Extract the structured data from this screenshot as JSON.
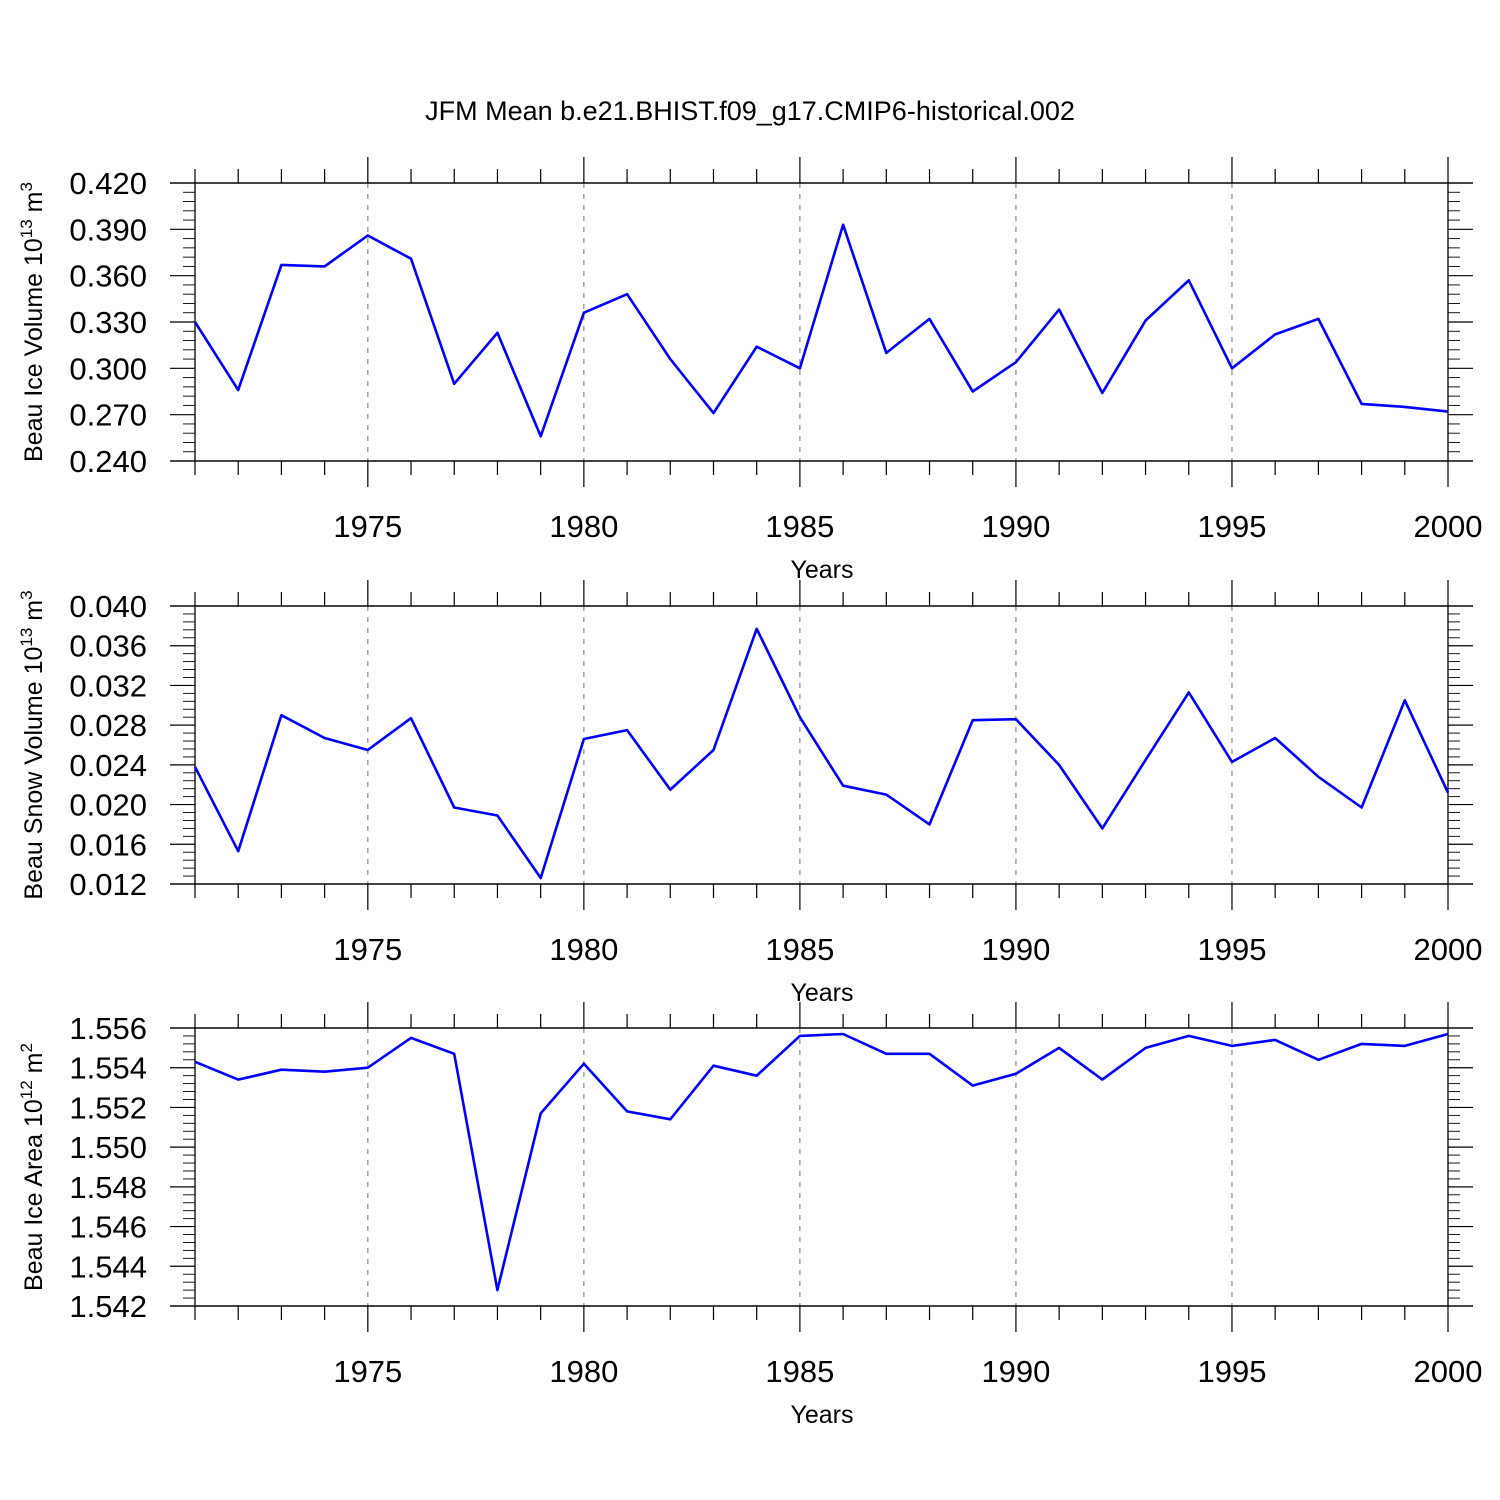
{
  "title": "JFM Mean b.e21.BHIST.f09_g17.CMIP6-historical.002",
  "colors": {
    "line": "#0000ff",
    "grid": "#888888",
    "axis": "#000000"
  },
  "chart_data": [
    {
      "type": "line",
      "ylabel": "Beau Ice Volume 10",
      "ylabel_exp": "13",
      "ylabel_unit": " m",
      "ylabel_unit_exp": "3",
      "xlabel": "Years",
      "xlim": [
        1971,
        2000
      ],
      "ylim": [
        0.24,
        0.42
      ],
      "yticks": [
        "0.240",
        "0.270",
        "0.300",
        "0.330",
        "0.360",
        "0.390",
        "0.420"
      ],
      "xticks": [
        "1975",
        "1980",
        "1985",
        "1990",
        "1995",
        "2000"
      ],
      "grid": "vertical dashed at major x ticks",
      "x": [
        1971,
        1972,
        1973,
        1974,
        1975,
        1976,
        1977,
        1978,
        1979,
        1980,
        1981,
        1982,
        1983,
        1984,
        1985,
        1986,
        1987,
        1988,
        1989,
        1990,
        1991,
        1992,
        1993,
        1994,
        1995,
        1996,
        1997,
        1998,
        1999,
        2000
      ],
      "values": [
        0.33,
        0.286,
        0.367,
        0.366,
        0.386,
        0.371,
        0.29,
        0.323,
        0.256,
        0.336,
        0.348,
        0.306,
        0.271,
        0.314,
        0.3,
        0.393,
        0.31,
        0.332,
        0.285,
        0.304,
        0.338,
        0.284,
        0.331,
        0.357,
        0.3,
        0.322,
        0.332,
        0.277,
        0.275,
        0.272
      ]
    },
    {
      "type": "line",
      "ylabel": "Beau Snow Volume 10",
      "ylabel_exp": "13",
      "ylabel_unit": " m",
      "ylabel_unit_exp": "3",
      "xlabel": "Years",
      "xlim": [
        1971,
        2000
      ],
      "ylim": [
        0.012,
        0.04
      ],
      "yticks": [
        "0.012",
        "0.016",
        "0.020",
        "0.024",
        "0.028",
        "0.032",
        "0.036",
        "0.040"
      ],
      "xticks": [
        "1975",
        "1980",
        "1985",
        "1990",
        "1995",
        "2000"
      ],
      "grid": "vertical dashed at major x ticks",
      "x": [
        1971,
        1972,
        1973,
        1974,
        1975,
        1976,
        1977,
        1978,
        1979,
        1980,
        1981,
        1982,
        1983,
        1984,
        1985,
        1986,
        1987,
        1988,
        1989,
        1990,
        1991,
        1992,
        1993,
        1994,
        1995,
        1996,
        1997,
        1998,
        1999,
        2000
      ],
      "values": [
        0.0238,
        0.0153,
        0.029,
        0.0267,
        0.0255,
        0.0287,
        0.0197,
        0.0189,
        0.0126,
        0.0266,
        0.0275,
        0.0215,
        0.0255,
        0.0377,
        0.0288,
        0.0219,
        0.021,
        0.018,
        0.0285,
        0.0286,
        0.024,
        0.0176,
        0.0245,
        0.0313,
        0.0243,
        0.0267,
        0.0228,
        0.0197,
        0.0305,
        0.0212
      ]
    },
    {
      "type": "line",
      "ylabel": "Beau Ice Area 10",
      "ylabel_exp": "12",
      "ylabel_unit": " m",
      "ylabel_unit_exp": "2",
      "xlabel": "Years",
      "xlim": [
        1971,
        2000
      ],
      "ylim": [
        1.542,
        1.556
      ],
      "yticks": [
        "1.542",
        "1.544",
        "1.546",
        "1.548",
        "1.550",
        "1.552",
        "1.554",
        "1.556"
      ],
      "xticks": [
        "1975",
        "1980",
        "1985",
        "1990",
        "1995",
        "2000"
      ],
      "grid": "vertical dashed at major x ticks",
      "x": [
        1971,
        1972,
        1973,
        1974,
        1975,
        1976,
        1977,
        1978,
        1979,
        1980,
        1981,
        1982,
        1983,
        1984,
        1985,
        1986,
        1987,
        1988,
        1989,
        1990,
        1991,
        1992,
        1993,
        1994,
        1995,
        1996,
        1997,
        1998,
        1999,
        2000
      ],
      "values": [
        1.5543,
        1.5534,
        1.5539,
        1.5538,
        1.554,
        1.5555,
        1.5547,
        1.5428,
        1.5517,
        1.5542,
        1.5518,
        1.5514,
        1.5541,
        1.5536,
        1.5556,
        1.5557,
        1.5547,
        1.5547,
        1.5531,
        1.5537,
        1.555,
        1.5534,
        1.555,
        1.5556,
        1.5551,
        1.5554,
        1.5544,
        1.5552,
        1.5551,
        1.5557
      ]
    }
  ]
}
